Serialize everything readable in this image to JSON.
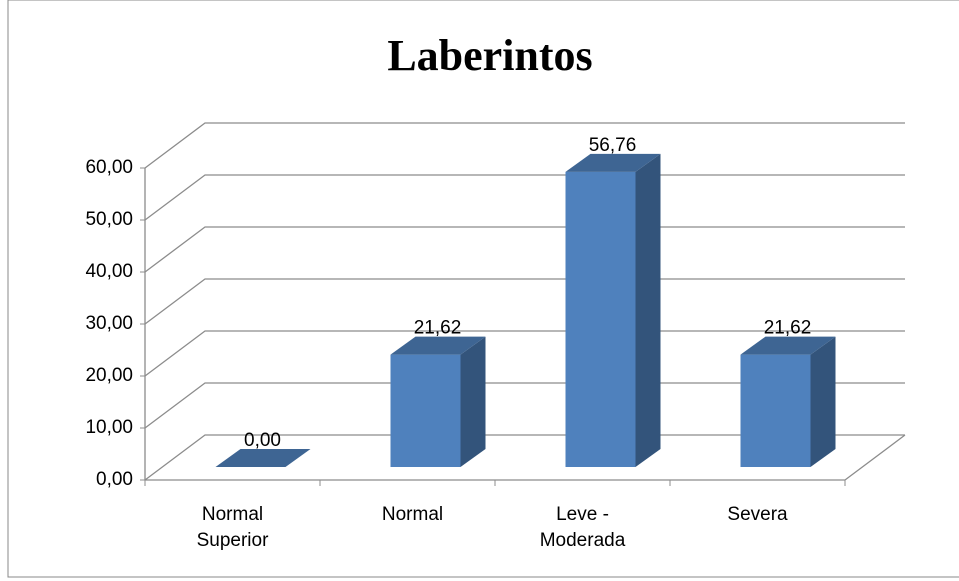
{
  "chart_data": {
    "type": "bar3d",
    "title": "Laberintos",
    "categories": [
      "Normal Superior",
      "Normal",
      "Leve - Moderada",
      "Severa"
    ],
    "values": [
      0,
      21.62,
      56.76,
      21.62
    ],
    "value_labels": [
      "0,00",
      "21,62",
      "56,76",
      "21,62"
    ],
    "color": "#4f81bd",
    "ylim": [
      0,
      60
    ],
    "yticks": [
      {
        "value": 0,
        "label": "0,00"
      },
      {
        "value": 10,
        "label": "10,00"
      },
      {
        "value": 20,
        "label": "20,00"
      },
      {
        "value": 30,
        "label": "30,00"
      },
      {
        "value": 40,
        "label": "40,00"
      },
      {
        "value": 50,
        "label": "50,00"
      },
      {
        "value": 60,
        "label": "60,00"
      }
    ],
    "grid": true
  }
}
